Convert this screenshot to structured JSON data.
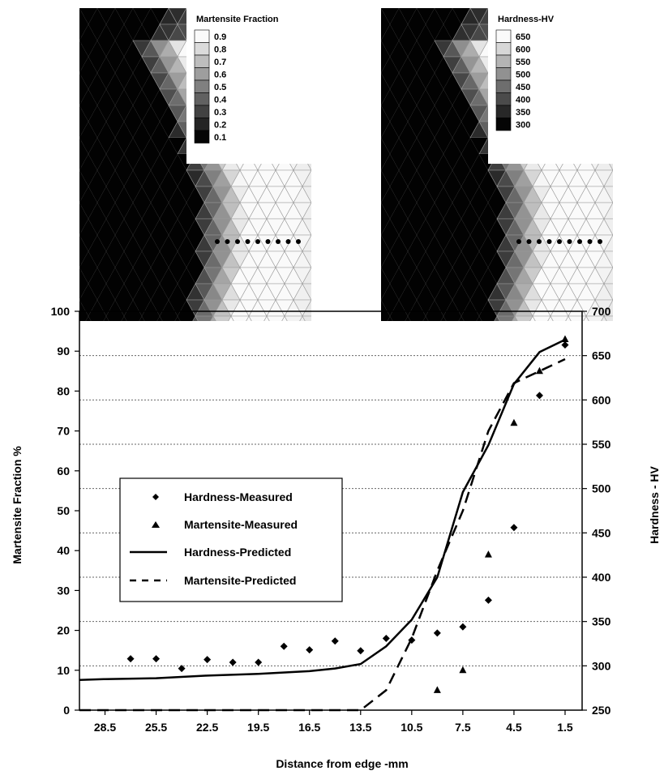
{
  "fem_panels": [
    {
      "colorbar_title": "Martensite Fraction",
      "colorbar_labels": [
        "0.9",
        "0.8",
        "0.7",
        "0.6",
        "0.5",
        "0.4",
        "0.3",
        "0.2",
        "0.1"
      ]
    },
    {
      "colorbar_title": "Hardness-HV",
      "colorbar_labels": [
        "650",
        "600",
        "550",
        "500",
        "450",
        "400",
        "350",
        "300"
      ]
    }
  ],
  "chart_data": {
    "type": "line",
    "xlabel": "Distance from edge -mm",
    "ylabel_left": "Martensite Fraction %",
    "ylabel_right": "Hardness - HV",
    "x_ticks": [
      "28.5",
      "25.5",
      "22.5",
      "19.5",
      "16.5",
      "13.5",
      "10.5",
      "7.5",
      "4.5",
      "1.5"
    ],
    "x_range": [
      30,
      0.5
    ],
    "y_left_range": [
      0,
      100
    ],
    "y_left_ticks": [
      0,
      10,
      20,
      30,
      40,
      50,
      60,
      70,
      80,
      90,
      100
    ],
    "y_right_range": [
      250,
      700
    ],
    "y_right_ticks": [
      250,
      300,
      350,
      400,
      450,
      500,
      550,
      600,
      650,
      700
    ],
    "gridlines": "horizontal dotted",
    "legend_position": "left-middle",
    "series": [
      {
        "name": "Hardness-Measured",
        "marker": "diamond",
        "axis": "right",
        "x": [
          27,
          25.5,
          24,
          22.5,
          21,
          19.5,
          18,
          16.5,
          15,
          13.5,
          12,
          10.5,
          9,
          7.5,
          6,
          4.5,
          3,
          1.5
        ],
        "y": [
          308,
          308,
          297,
          307,
          304,
          304,
          322,
          318,
          328,
          317,
          331,
          329,
          337,
          344,
          374,
          456,
          605,
          662
        ]
      },
      {
        "name": "Martensite-Measured",
        "marker": "triangle",
        "axis": "left",
        "x": [
          9,
          7.5,
          6,
          4.5,
          3,
          1.5
        ],
        "y": [
          5,
          10,
          39,
          72,
          85,
          93
        ]
      },
      {
        "name": "Hardness-Predicted",
        "style": "solid",
        "axis": "right",
        "x": [
          30,
          28.5,
          25.5,
          22.5,
          19.5,
          16.5,
          15,
          13.5,
          12,
          10.5,
          9,
          7.5,
          6,
          4.5,
          3,
          1.5
        ],
        "y": [
          284,
          285,
          286,
          289,
          291,
          294,
          297,
          302,
          322,
          352,
          400,
          496,
          549,
          618,
          654,
          668
        ]
      },
      {
        "name": "Martensite-Predicted",
        "style": "dashed",
        "axis": "left",
        "x": [
          30,
          13.5,
          12,
          10.5,
          9,
          7.5,
          6,
          4.5,
          3,
          1.5
        ],
        "y": [
          0,
          0,
          5,
          18,
          35,
          50,
          70,
          82,
          85,
          88
        ]
      }
    ]
  }
}
